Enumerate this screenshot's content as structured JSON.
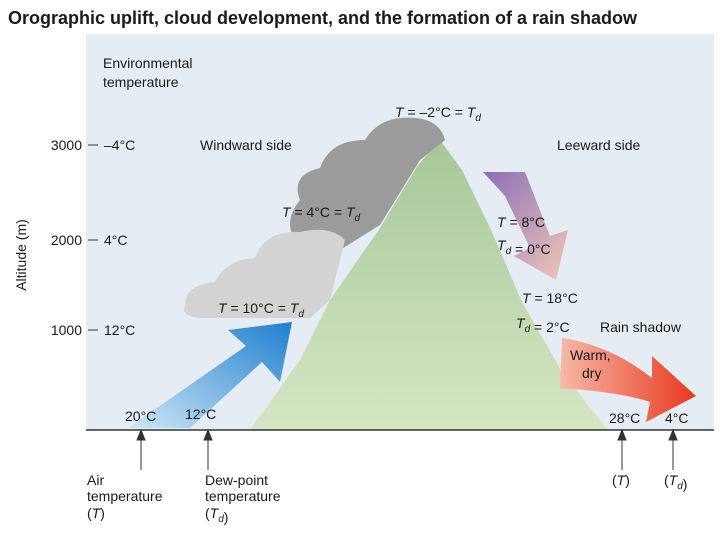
{
  "title": "Orographic uplift, cloud development, and the formation of a rain shadow",
  "axis": {
    "label": "Altitude (m)",
    "ticks": [
      {
        "altitude": "3000",
        "temperature": "–4°C"
      },
      {
        "altitude": "2000",
        "temperature": "4°C"
      },
      {
        "altitude": "1000",
        "temperature": "12°C"
      }
    ]
  },
  "environmental_heading": [
    "Environmental",
    "temperature"
  ],
  "sides": {
    "windward": "Windward side",
    "leeward": "Leeward side",
    "rain_shadow": "Rain shadow",
    "warm_dry": [
      "Warm,",
      "dry"
    ]
  },
  "annotations": [
    [
      {
        "text": "T"
      },
      {
        "text": " = –2°C = "
      },
      {
        "text": "T"
      },
      {
        "sub": "d"
      }
    ],
    [
      {
        "text": "T"
      },
      {
        "text": " = 4°C = "
      },
      {
        "text": "T"
      },
      {
        "sub": "d"
      }
    ],
    [
      {
        "text": "T"
      },
      {
        "text": " = 10°C = "
      },
      {
        "text": "T"
      },
      {
        "sub": "d"
      }
    ],
    [
      {
        "text": "T"
      },
      {
        "text": " = 8°C"
      }
    ],
    [
      {
        "text": "T"
      },
      {
        "sub": "d"
      },
      {
        "text": " = 0°C"
      }
    ],
    [
      {
        "text": "T"
      },
      {
        "text": " = 18°C"
      }
    ],
    [
      {
        "text": "T"
      },
      {
        "sub": "d"
      },
      {
        "text": " = 2°C"
      }
    ]
  ],
  "surface": {
    "windward_air": "20°C",
    "windward_dew": "12°C",
    "leeward_air": "28°C",
    "leeward_dew": "4°C"
  },
  "keys": {
    "air": [
      "Air",
      "temperature",
      [
        {
          "text": "("
        },
        {
          "text": "T"
        },
        {
          "text": ")"
        }
      ]
    ],
    "dew": [
      "Dew-point",
      "temperature",
      [
        {
          "text": "("
        },
        {
          "text": "T"
        },
        {
          "sub": "d"
        },
        {
          "text": ")"
        }
      ]
    ],
    "leeward_air": [
      {
        "text": "("
      },
      {
        "text": "T"
      },
      {
        "text": ")"
      }
    ],
    "leeward_dew": [
      {
        "text": "("
      },
      {
        "text": "T"
      },
      {
        "sub": "d"
      },
      {
        "text": ")"
      }
    ]
  }
}
